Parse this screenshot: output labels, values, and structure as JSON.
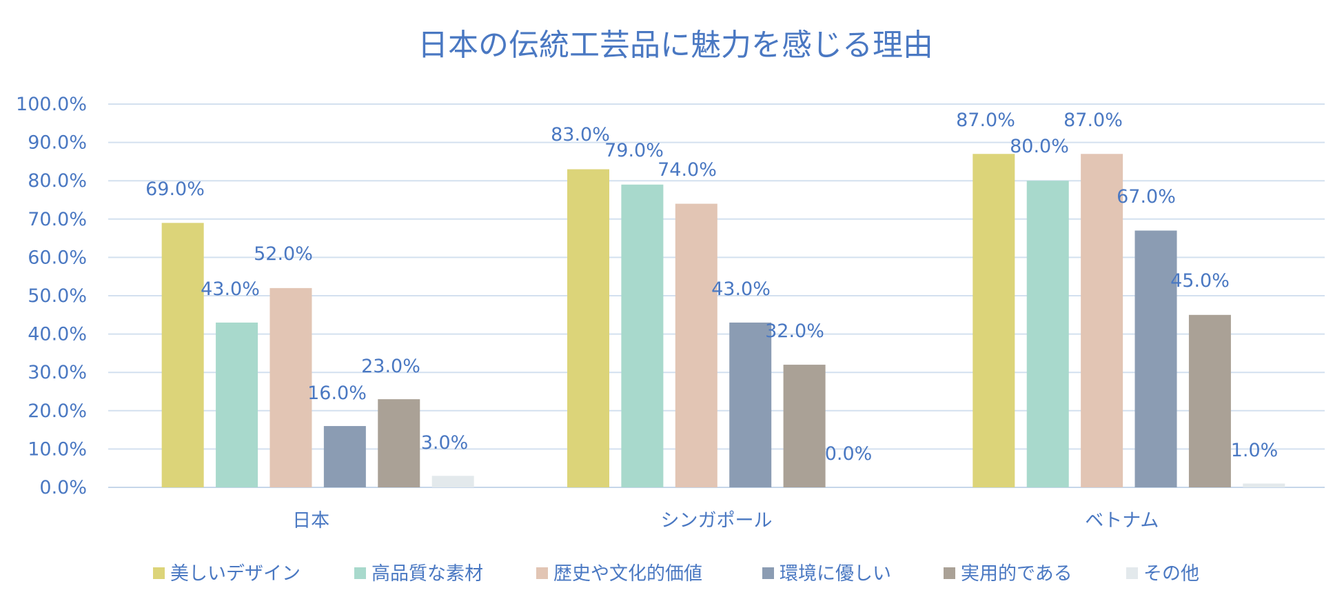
{
  "chart_data": {
    "type": "bar",
    "title": "日本の伝統工芸品に魅力を感じる理由",
    "categories": [
      "日本",
      "シンガポール",
      "ベトナム"
    ],
    "series": [
      {
        "name": "美しいデザイン",
        "values": [
          69.0,
          83.0,
          87.0
        ],
        "color": "#dcd479"
      },
      {
        "name": "高品質な素材",
        "values": [
          43.0,
          79.0,
          80.0
        ],
        "color": "#a8d9cc"
      },
      {
        "name": "歴史や文化的価値",
        "values": [
          52.0,
          74.0,
          87.0
        ],
        "color": "#e2c5b4"
      },
      {
        "name": "環境に優しい",
        "values": [
          16.0,
          43.0,
          67.0
        ],
        "color": "#8b9cb3"
      },
      {
        "name": "実用的である",
        "values": [
          23.0,
          32.0,
          45.0
        ],
        "color": "#aaa196"
      },
      {
        "name": "その他",
        "values": [
          3.0,
          0.0,
          1.0
        ],
        "color": "#e3e9ec"
      }
    ],
    "ylim": [
      0,
      100
    ],
    "yticks": [
      "0.0%",
      "10.0%",
      "20.0%",
      "30.0%",
      "40.0%",
      "50.0%",
      "60.0%",
      "70.0%",
      "80.0%",
      "90.0%",
      "100.0%"
    ],
    "data_label_suffix": "%",
    "legend_position": "bottom",
    "grid": true,
    "text_color": "#4a78c2"
  }
}
